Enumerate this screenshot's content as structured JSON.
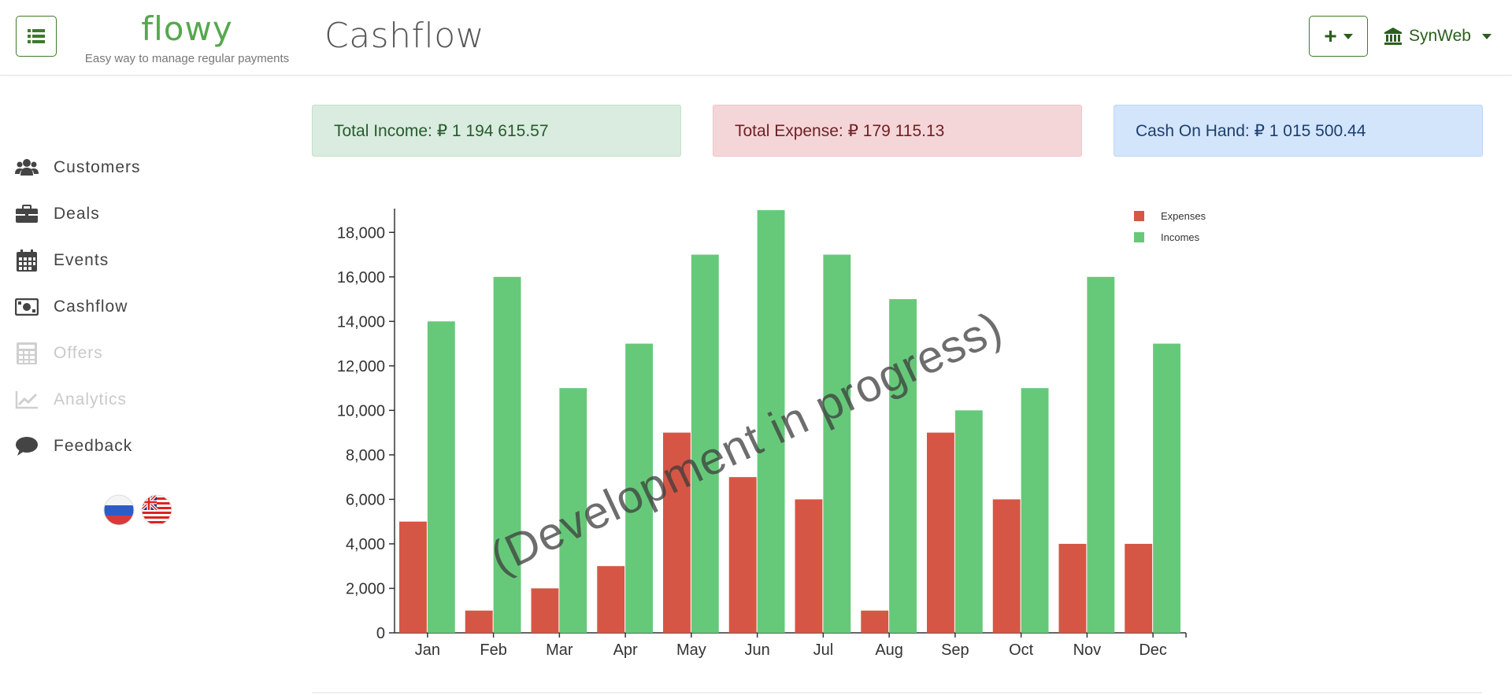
{
  "header": {
    "logo_text": "flowy",
    "tagline": "Easy way to manage regular payments",
    "page_title": "Cashflow",
    "add_label": "+",
    "account_name": "SynWeb"
  },
  "sidebar": {
    "items": [
      {
        "label": "Customers",
        "icon": "users-icon",
        "disabled": false
      },
      {
        "label": "Deals",
        "icon": "briefcase-icon",
        "disabled": false
      },
      {
        "label": "Events",
        "icon": "calendar-icon",
        "disabled": false
      },
      {
        "label": "Cashflow",
        "icon": "money-bill-icon",
        "disabled": false
      },
      {
        "label": "Offers",
        "icon": "calculator-icon",
        "disabled": true
      },
      {
        "label": "Analytics",
        "icon": "chart-line-icon",
        "disabled": true
      },
      {
        "label": "Feedback",
        "icon": "comment-icon",
        "disabled": false
      }
    ],
    "languages": [
      "russian-flag-icon",
      "english-flag-icon"
    ]
  },
  "stats": {
    "income": "Total Income: ₽ 1 194 615.57",
    "expense": "Total Expense: ₽ 179 115.13",
    "cash": "Cash On Hand: ₽ 1 015 500.44"
  },
  "colors": {
    "accent": "#3f7a2a",
    "expenses": "#d65645",
    "incomes": "#66c97a"
  },
  "chart_data": {
    "type": "bar",
    "categories": [
      "Jan",
      "Feb",
      "Mar",
      "Apr",
      "May",
      "Jun",
      "Jul",
      "Aug",
      "Sep",
      "Oct",
      "Nov",
      "Dec"
    ],
    "series": [
      {
        "name": "Expenses",
        "values": [
          5000,
          1000,
          2000,
          3000,
          9000,
          7000,
          6000,
          1000,
          9000,
          6000,
          4000,
          4000
        ]
      },
      {
        "name": "Incomes",
        "values": [
          14000,
          16000,
          11000,
          13000,
          17000,
          19000,
          17000,
          15000,
          10000,
          11000,
          16000,
          13000
        ]
      }
    ],
    "ylim": [
      0,
      19000
    ],
    "yticks": [
      0,
      2000,
      4000,
      6000,
      8000,
      10000,
      12000,
      14000,
      16000,
      18000
    ],
    "ytick_labels": [
      "0",
      "2,000",
      "4,000",
      "6,000",
      "8,000",
      "10,000",
      "12,000",
      "14,000",
      "16,000",
      "18,000"
    ],
    "legend_position": "top-right",
    "watermark": "(Development in progress)",
    "grid": false
  }
}
